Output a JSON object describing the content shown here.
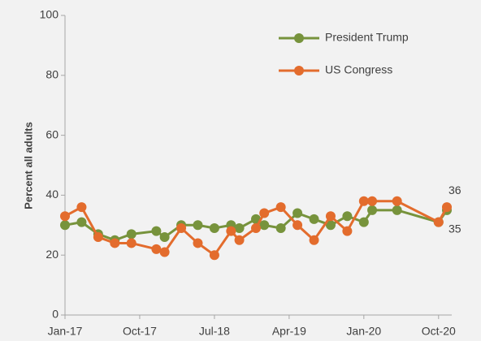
{
  "chart_data": {
    "type": "line",
    "y_label": "Percent all adults",
    "x": [
      "2017-01",
      "2017-03",
      "2017-05",
      "2017-07",
      "2017-09",
      "2017-12",
      "2018-01",
      "2018-03",
      "2018-05",
      "2018-07",
      "2018-09",
      "2018-10",
      "2018-12",
      "2019-01",
      "2019-03",
      "2019-05",
      "2019-07",
      "2019-09",
      "2019-11",
      "2020-01",
      "2020-02",
      "2020-05",
      "2020-10",
      "2020-11"
    ],
    "series": [
      {
        "name": "President Trump",
        "color": "#77933c",
        "values": [
          30,
          31,
          27,
          25,
          27,
          28,
          26,
          30,
          30,
          29,
          30,
          29,
          32,
          30,
          29,
          34,
          32,
          30,
          33,
          31,
          35,
          35,
          31,
          35
        ]
      },
      {
        "name": "US Congress",
        "color": "#e36c2d",
        "values": [
          33,
          36,
          26,
          24,
          24,
          22,
          21,
          29,
          24,
          20,
          28,
          25,
          29,
          34,
          36,
          30,
          25,
          33,
          28,
          38,
          38,
          38,
          31,
          36
        ]
      }
    ],
    "xlim": [
      "2017-01",
      "2020-11"
    ],
    "xticks": [
      {
        "value": "2017-01",
        "label": "Jan-17"
      },
      {
        "value": "2017-10",
        "label": "Oct-17"
      },
      {
        "value": "2018-07",
        "label": "Jul-18"
      },
      {
        "value": "2019-04",
        "label": "Apr-19"
      },
      {
        "value": "2020-01",
        "label": "Jan-20"
      },
      {
        "value": "2020-10",
        "label": "Oct-20"
      }
    ],
    "ylim": [
      0,
      100
    ],
    "yticks": [
      0,
      20,
      40,
      60,
      80,
      100
    ],
    "grid": false,
    "legend": "upper right"
  }
}
